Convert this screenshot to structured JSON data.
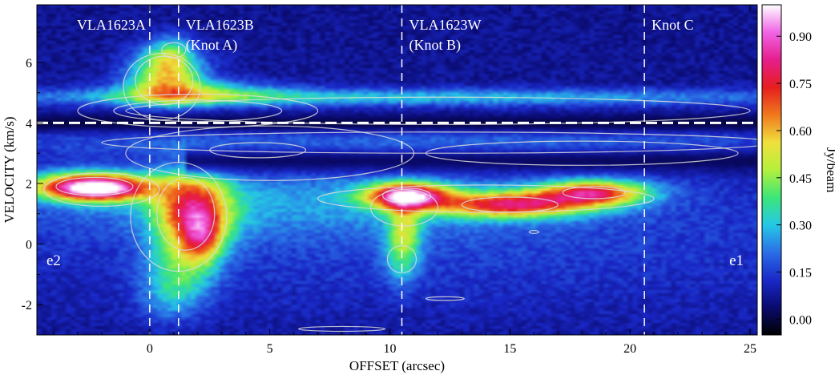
{
  "chart_data": {
    "type": "heatmap",
    "title": "",
    "xlabel": "OFFSET (arcsec)",
    "ylabel": "VELOCITY (km/s)",
    "xlim": [
      -4.7,
      25.3
    ],
    "ylim": [
      -3.0,
      7.9
    ],
    "x_ticks": [
      0,
      5,
      10,
      15,
      20,
      25
    ],
    "x_tick_labels": [
      "0",
      "5",
      "10",
      "15",
      "20",
      "25"
    ],
    "y_ticks": [
      -2,
      0,
      2,
      4,
      6
    ],
    "y_tick_labels": [
      "-2",
      "0",
      "2",
      "4",
      "6"
    ],
    "colorbar": {
      "label": "Jy/beam",
      "range": [
        -0.05,
        1.0
      ],
      "ticks": [
        0.0,
        0.15,
        0.3,
        0.45,
        0.6,
        0.75,
        0.9
      ],
      "tick_labels": [
        "0.00",
        "0.15",
        "0.30",
        "0.45",
        "0.60",
        "0.75",
        "0.90"
      ],
      "colormap": [
        "#000000",
        "#0a0a6e",
        "#1a28c8",
        "#2a6ee6",
        "#25c8e6",
        "#3ce678",
        "#b4f03c",
        "#f0e03c",
        "#f0781e",
        "#e61e1e",
        "#e61e8c",
        "#f064e6",
        "#ffffff"
      ]
    },
    "systemic_velocity_line": 4.0,
    "source_lines": [
      {
        "offset": 0.0,
        "labels": [
          "VLA1623A"
        ]
      },
      {
        "offset": 1.2,
        "labels": [
          "VLA1623B",
          "(Knot A)"
        ]
      },
      {
        "offset": 10.5,
        "labels": [
          "VLA1623W",
          "(Knot B)"
        ]
      },
      {
        "offset": 20.6,
        "labels": [
          "Knot C"
        ]
      }
    ],
    "corner_labels": {
      "left": "e2",
      "right": "e1"
    },
    "emission_components": [
      {
        "x": -2.5,
        "y": 1.95,
        "sx": 2.0,
        "sy": 0.35,
        "amp": 0.55
      },
      {
        "x": -2.2,
        "y": 1.8,
        "sx": 1.2,
        "sy": 0.25,
        "amp": 0.5
      },
      {
        "x": 1.8,
        "y": 1.1,
        "sx": 1.1,
        "sy": 0.9,
        "amp": 0.55
      },
      {
        "x": 2.2,
        "y": 0.2,
        "sx": 0.6,
        "sy": 0.6,
        "amp": 0.3
      },
      {
        "x": 1.3,
        "y": -0.8,
        "sx": 1.0,
        "sy": 0.8,
        "amp": 0.22
      },
      {
        "x": 0.8,
        "y": -1.8,
        "sx": 0.9,
        "sy": 0.6,
        "amp": 0.12
      },
      {
        "x": 0.7,
        "y": 5.6,
        "sx": 1.1,
        "sy": 0.6,
        "amp": 0.45
      },
      {
        "x": 0.9,
        "y": 6.3,
        "sx": 0.6,
        "sy": 0.4,
        "amp": 0.2
      },
      {
        "x": 10.7,
        "y": 1.6,
        "sx": 1.2,
        "sy": 0.3,
        "amp": 0.75
      },
      {
        "x": 10.6,
        "y": 0.5,
        "sx": 0.5,
        "sy": 0.7,
        "amp": 0.3
      },
      {
        "x": 10.5,
        "y": -0.6,
        "sx": 0.5,
        "sy": 0.6,
        "amp": 0.15
      },
      {
        "x": 15.0,
        "y": 1.3,
        "sx": 2.2,
        "sy": 0.3,
        "amp": 0.6
      },
      {
        "x": 18.5,
        "y": 1.7,
        "sx": 1.6,
        "sy": 0.3,
        "amp": 0.6
      },
      {
        "x": 5.0,
        "y": 1.4,
        "sx": 8.0,
        "sy": 0.8,
        "amp": 0.12
      },
      {
        "x": 10.0,
        "y": 4.85,
        "sx": 14.0,
        "sy": 0.2,
        "amp": 0.22
      },
      {
        "x": 2.0,
        "y": 5.0,
        "sx": 2.5,
        "sy": 0.3,
        "amp": 0.25
      },
      {
        "x": 12.0,
        "y": 3.3,
        "sx": 16.0,
        "sy": 0.5,
        "amp": 0.12
      },
      {
        "x": 12.0,
        "y": 0.5,
        "sx": 16.0,
        "sy": 2.0,
        "amp": 0.09
      }
    ],
    "contours": [
      {
        "x": 0.6,
        "y": 5.4,
        "rx": 1.2,
        "ry": 0.8
      },
      {
        "x": 0.5,
        "y": 5.2,
        "rx": 1.6,
        "ry": 1.1
      },
      {
        "x": 1.0,
        "y": 6.4,
        "rx": 0.5,
        "ry": 0.25
      },
      {
        "x": 2.0,
        "y": 4.4,
        "rx": 3.5,
        "ry": 0.35
      },
      {
        "x": 2.0,
        "y": 4.4,
        "rx": 5.0,
        "ry": 0.55
      },
      {
        "x": 12.0,
        "y": 4.4,
        "rx": 13.0,
        "ry": 0.45
      },
      {
        "x": 12.0,
        "y": 3.35,
        "rx": 14.0,
        "ry": 0.35
      },
      {
        "x": 5.0,
        "y": 3.0,
        "rx": 6.0,
        "ry": 0.9
      },
      {
        "x": 4.5,
        "y": 3.1,
        "rx": 2.0,
        "ry": 0.25
      },
      {
        "x": 18.0,
        "y": 3.0,
        "rx": 6.5,
        "ry": 0.4
      },
      {
        "x": -2.3,
        "y": 1.9,
        "rx": 1.6,
        "ry": 0.3
      },
      {
        "x": -2.0,
        "y": 1.8,
        "rx": 2.4,
        "ry": 0.55
      },
      {
        "x": 1.5,
        "y": 1.0,
        "rx": 1.2,
        "ry": 1.2
      },
      {
        "x": 1.2,
        "y": 0.9,
        "rx": 2.0,
        "ry": 1.8
      },
      {
        "x": 10.7,
        "y": 1.6,
        "rx": 1.0,
        "ry": 0.25
      },
      {
        "x": 10.6,
        "y": 1.2,
        "rx": 1.4,
        "ry": 0.6
      },
      {
        "x": 10.5,
        "y": -0.5,
        "rx": 0.6,
        "ry": 0.45
      },
      {
        "x": 15.0,
        "y": 1.3,
        "rx": 2.0,
        "ry": 0.25
      },
      {
        "x": 18.5,
        "y": 1.7,
        "rx": 1.3,
        "ry": 0.2
      },
      {
        "x": 14.0,
        "y": 1.5,
        "rx": 7.0,
        "ry": 0.45
      },
      {
        "x": 8.0,
        "y": -2.8,
        "rx": 1.8,
        "ry": 0.08
      },
      {
        "x": 12.3,
        "y": -1.8,
        "rx": 0.8,
        "ry": 0.06
      },
      {
        "x": 16.0,
        "y": 0.4,
        "rx": 0.2,
        "ry": 0.05
      }
    ]
  }
}
